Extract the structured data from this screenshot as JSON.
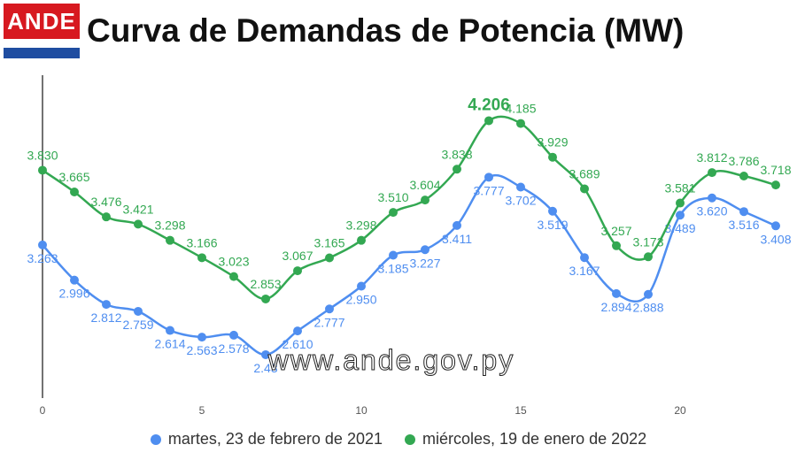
{
  "logo": {
    "text": "ANDE"
  },
  "title": "Curva de Demandas de Potencia (MW)",
  "watermark": "www.ande.gov.py",
  "colors": {
    "series1": "#4f8ef0",
    "series2": "#33a852",
    "axis": "#444444",
    "logo_red": "#d71920",
    "logo_blue": "#1f4da1"
  },
  "chart_data": {
    "type": "line",
    "x": [
      0,
      1,
      2,
      3,
      4,
      5,
      6,
      7,
      8,
      9,
      10,
      11,
      12,
      13,
      14,
      15,
      16,
      17,
      18,
      19,
      20,
      21,
      22,
      23
    ],
    "xticks": [
      0,
      5,
      10,
      15,
      20
    ],
    "ylim": [
      2.0,
      4.35
    ],
    "grid": false,
    "legend_position": "bottom",
    "series": [
      {
        "name": "martes, 23 de febrero de 2021",
        "color": "#4f8ef0",
        "values": [
          3.263,
          2.996,
          2.812,
          2.759,
          2.614,
          2.563,
          2.578,
          2.43,
          2.61,
          2.777,
          2.95,
          3.185,
          3.227,
          3.411,
          3.777,
          3.702,
          3.519,
          3.167,
          2.894,
          2.888,
          3.489,
          3.62,
          3.516,
          3.408
        ],
        "labels": [
          "3.263",
          "2.996",
          "2.812",
          "2.759",
          "2.614",
          "2.563",
          "2.578",
          "2.43",
          "2.610",
          "2.777",
          "2.950",
          "3.185",
          "3.227",
          "3.411",
          "3.777",
          "3.702",
          "3.519",
          "3.167",
          "2.894",
          "2.888",
          "3.489",
          "3.620",
          "3.516",
          "3.408"
        ]
      },
      {
        "name": "miércoles, 19 de enero de 2022",
        "color": "#33a852",
        "values": [
          3.83,
          3.665,
          3.476,
          3.421,
          3.298,
          3.166,
          3.023,
          2.853,
          3.067,
          3.165,
          3.298,
          3.51,
          3.604,
          3.838,
          4.206,
          4.185,
          3.929,
          3.689,
          3.257,
          3.173,
          3.581,
          3.812,
          3.786,
          3.718
        ],
        "labels": [
          "3.830",
          "3.665",
          "3.476",
          "3.421",
          "3.298",
          "3.166",
          "3.023",
          "2.853",
          "3.067",
          "3.165",
          "3.298",
          "3.510",
          "3.604",
          "3.838",
          "4.206",
          "4.185",
          "3.929",
          "3.689",
          "3.257",
          "3.173",
          "3.581",
          "3.812",
          "3.786",
          "3.718"
        ],
        "highlight_index": 14
      }
    ]
  }
}
